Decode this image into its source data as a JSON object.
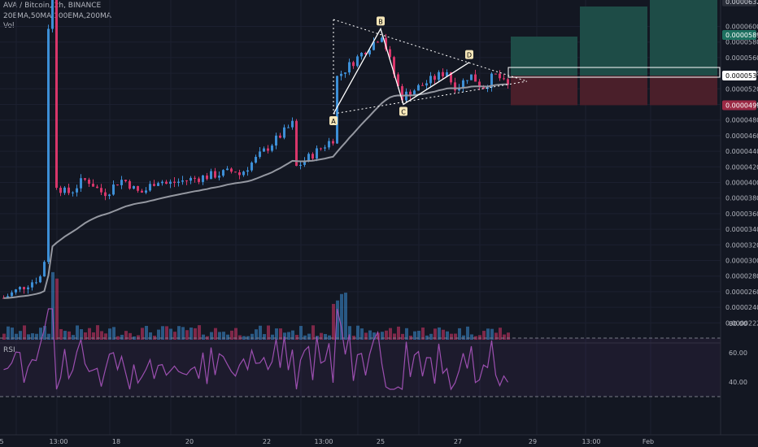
{
  "header": {
    "title": "AVA / Bitcoin, 2h, BINANCE",
    "indicators": "20EMA,50MA,100EMA,200MA",
    "vol": "Vol"
  },
  "rsi_label": "RSI",
  "colors": {
    "background": "#131722",
    "up": "#3d8fd6",
    "down": "#d8366a",
    "ma": "#9598a1",
    "rsi": "#9c4fb0",
    "pattern": "#ffffff",
    "target": "#1e4c47",
    "stop": "#4a1f2a"
  },
  "chart_data": {
    "type": "candlestick",
    "price_axis": {
      "ticks": [
        "0.0000600",
        "0.0000580",
        "0.0000560",
        "0.0000540",
        "0.0000520",
        "0.0000500",
        "0.0000480",
        "0.0000460",
        "0.0000440",
        "0.0000420",
        "0.0000400",
        "0.0000380",
        "0.0000360",
        "0.0000340",
        "0.0000320",
        "0.0000300",
        "0.0000280",
        "0.0000260",
        "0.0000240",
        "0.0000222"
      ],
      "markers": [
        {
          "text": "0.0000632",
          "style": "dark"
        },
        {
          "text": "0.0000589",
          "style": "green"
        },
        {
          "text": "0.0000537",
          "style": "white"
        },
        {
          "text": "0.0000499",
          "style": "red"
        }
      ]
    },
    "time_axis": [
      "5",
      "13:00",
      "18",
      "20",
      "22",
      "13:00",
      "25",
      "27",
      "29",
      "13:00",
      "Feb"
    ],
    "pattern_points": [
      {
        "label": "A",
        "price": 4.88e-05
      },
      {
        "label": "B",
        "price": 5.97e-05
      },
      {
        "label": "C",
        "price": 5e-05
      },
      {
        "label": "D",
        "price": 5.54e-05
      }
    ],
    "rsi": {
      "ticks": [
        "80.00",
        "60.00",
        "40.00"
      ],
      "upper": 70,
      "lower": 30
    },
    "ylim": [
      2.22e-05,
      6.32e-05
    ]
  }
}
